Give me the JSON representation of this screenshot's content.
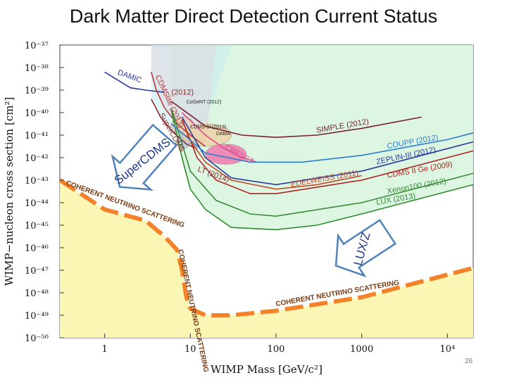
{
  "title": "Dark Matter Direct Detection Current Status",
  "page_number": "26",
  "colors": {
    "luz_arrow": "#4f81bd",
    "neutrino_floor": "#f4822a",
    "neutrino_fill": "#fbf6b3",
    "excluded_region": "#d9f5df",
    "supercdms_region": "#c9ecf2",
    "cdms_region": "#f6c7d0"
  },
  "chart_data": {
    "type": "line",
    "title": "",
    "xlabel": "WIMP Mass [GeV/c²]",
    "ylabel": "WIMP−nucleon cross section [cm²]",
    "xscale": "log",
    "yscale": "log",
    "xlim": [
      0.3,
      20000
    ],
    "ylim": [
      1e-50,
      1e-37
    ],
    "x_ticks": [
      "1",
      "10",
      "100",
      "1000",
      "10⁴"
    ],
    "y_ticks": [
      "10⁻³⁷",
      "10⁻³⁸",
      "10⁻³⁹",
      "10⁻⁴⁰",
      "10⁻⁴¹",
      "10⁻⁴²",
      "10⁻⁴³",
      "10⁻⁴⁴",
      "10⁻⁴⁵",
      "10⁻⁴⁶",
      "10⁻⁴⁷",
      "10⁻⁴⁸",
      "10⁻⁴⁹",
      "10⁻⁵⁰"
    ],
    "grid": false,
    "series": [
      {
        "name": "DAMIC",
        "color": "#2b3aa0",
        "points": [
          [
            1.0,
            -38.2
          ],
          [
            2.0,
            -38.9
          ],
          [
            3.0,
            -39.0
          ],
          [
            5.0,
            -39.1
          ]
        ]
      },
      {
        "name": "CDMSlite (2013)",
        "color": "#b53a3a",
        "points": [
          [
            3.5,
            -38.2
          ],
          [
            4.0,
            -39.0
          ],
          [
            5.0,
            -39.8
          ],
          [
            7.0,
            -40.5
          ],
          [
            10.0,
            -41.0
          ],
          [
            15.0,
            -41.5
          ]
        ]
      },
      {
        "name": "SuperCDMS",
        "color": "#8a2b2b",
        "points": [
          [
            3.5,
            -39.4
          ],
          [
            4.5,
            -40.2
          ],
          [
            6.0,
            -40.8
          ],
          [
            9.0,
            -41.4
          ],
          [
            12.0,
            -41.6
          ]
        ]
      },
      {
        "name": "CRESST",
        "color": "#d94f8a",
        "points": [
          [
            8.0,
            -40.0
          ],
          [
            15.0,
            -41.0
          ],
          [
            25.0,
            -41.6
          ],
          [
            40.0,
            -42.0
          ],
          [
            60.0,
            -42.2
          ]
        ]
      },
      {
        "name": "LUX (2013)",
        "color": "#2e8b2e",
        "points": [
          [
            6.0,
            -39.9
          ],
          [
            8.0,
            -42.0
          ],
          [
            10.0,
            -43.4
          ],
          [
            15.0,
            -44.3
          ],
          [
            30.0,
            -45.1
          ],
          [
            100.0,
            -45.2
          ],
          [
            300.0,
            -45.0
          ],
          [
            1000.0,
            -44.5
          ],
          [
            10000.0,
            -43.5
          ],
          [
            20000.0,
            -43.2
          ]
        ]
      },
      {
        "name": "Xenon100 (2012)",
        "color": "#3b8a3b",
        "points": [
          [
            6.0,
            -39.8
          ],
          [
            10.0,
            -42.6
          ],
          [
            20.0,
            -43.9
          ],
          [
            50.0,
            -44.5
          ],
          [
            100.0,
            -44.6
          ],
          [
            1000.0,
            -44.0
          ],
          [
            10000.0,
            -43.0
          ],
          [
            20000.0,
            -42.7
          ]
        ]
      },
      {
        "name": "CDMS II Ge (2009)",
        "color": "#b22222",
        "points": [
          [
            8.0,
            -40.3
          ],
          [
            12.0,
            -42.0
          ],
          [
            20.0,
            -43.0
          ],
          [
            50.0,
            -43.6
          ],
          [
            100.0,
            -43.6
          ],
          [
            1000.0,
            -43.0
          ],
          [
            10000.0,
            -42.0
          ],
          [
            20000.0,
            -41.7
          ]
        ]
      },
      {
        "name": "EDELWEISS (2011)",
        "color": "#c04a2a",
        "points": [
          [
            9.0,
            -41.0
          ],
          [
            15.0,
            -42.2
          ],
          [
            30.0,
            -43.0
          ],
          [
            100.0,
            -43.4
          ],
          [
            300.0,
            -43.2
          ],
          [
            1000.0,
            -42.8
          ]
        ]
      },
      {
        "name": "ZEPLIN-III (2012)",
        "color": "#2b3aa0",
        "points": [
          [
            8.0,
            -40.2
          ],
          [
            15.0,
            -42.0
          ],
          [
            30.0,
            -42.9
          ],
          [
            100.0,
            -43.2
          ],
          [
            1000.0,
            -42.6
          ],
          [
            10000.0,
            -41.6
          ],
          [
            20000.0,
            -41.3
          ]
        ]
      },
      {
        "name": "COUPP (2012)",
        "color": "#2b7bd0",
        "points": [
          [
            6.0,
            -40.5
          ],
          [
            15.0,
            -41.8
          ],
          [
            50.0,
            -42.2
          ],
          [
            200.0,
            -42.2
          ],
          [
            1000.0,
            -41.9
          ],
          [
            10000.0,
            -41.2
          ],
          [
            20000.0,
            -40.9
          ]
        ]
      },
      {
        "name": "SIMPLE (2012)",
        "color": "#7a1f2f",
        "points": [
          [
            6.0,
            -39.5
          ],
          [
            15.0,
            -40.6
          ],
          [
            40.0,
            -41.0
          ],
          [
            100.0,
            -41.1
          ],
          [
            300.0,
            -41.0
          ],
          [
            1000.0,
            -40.7
          ],
          [
            5000.0,
            -40.2
          ]
        ]
      },
      {
        "name": "LUX/Z",
        "color": "#4f81bd",
        "points": [
          [
            500.0,
            -46.8
          ],
          [
            2000.0,
            -45.3
          ]
        ]
      },
      {
        "name": "SuperCDMS",
        "color": "#4f81bd",
        "points": [
          [
            1.5,
            -43.3
          ],
          [
            5.0,
            -41.0
          ]
        ]
      },
      {
        "name": "COHERENT NEUTRINO SCATTERING",
        "color": "#f4822a",
        "points": [
          [
            0.3,
            -43.0
          ],
          [
            1.0,
            -44.3
          ],
          [
            3.0,
            -44.8
          ],
          [
            5.0,
            -45.5
          ],
          [
            7.0,
            -46.1
          ],
          [
            8.0,
            -47.0
          ],
          [
            9.0,
            -48.2
          ],
          [
            10.0,
            -48.7
          ],
          [
            15.0,
            -49.0
          ],
          [
            30.0,
            -49.0
          ],
          [
            100.0,
            -48.8
          ],
          [
            1000.0,
            -48.2
          ],
          [
            10000.0,
            -47.2
          ],
          [
            20000.0,
            -46.9
          ]
        ]
      }
    ],
    "regions": [
      {
        "name": "CoGeNT (2012)",
        "x": [
          6.0,
          11.0
        ],
        "y": [
          -40.9,
          -40.2
        ]
      },
      {
        "name": "CDMS Si (2013)",
        "x": [
          7.0,
          10.0
        ],
        "y": [
          -41.6,
          -40.9
        ]
      },
      {
        "name": "DAMA",
        "x": [
          8.0,
          30.0
        ],
        "y": [
          -41.5,
          -40.5
        ]
      },
      {
        "name": "CRESST",
        "x": [
          15.0,
          45.0
        ],
        "y": [
          -42.3,
          -41.4
        ]
      }
    ],
    "curve_labels": [
      {
        "text": "DAMIC",
        "series": 0
      },
      {
        "text": "CDMSlite (2013)",
        "series": 1
      },
      {
        "text": "(2012)",
        "series": 2
      },
      {
        "text": "SuperCDMS",
        "series": 2
      },
      {
        "text": "CoGeNT (2012)",
        "series": 3
      },
      {
        "text": "CDMS Si (2013)",
        "series": 3
      },
      {
        "text": "DAMA",
        "series": 3
      },
      {
        "text": "SIMPLE (2012)",
        "series": 10
      },
      {
        "text": "COUPP (2012)",
        "series": 9
      },
      {
        "text": "ZEPLIN-III (2012)",
        "series": 8
      },
      {
        "text": "CDMS II Ge (2009)",
        "series": 6
      },
      {
        "text": "EDELWEISS (2011)",
        "series": 7
      },
      {
        "text": "Xenon100 (2012)",
        "series": 5
      },
      {
        "text": "LUX (2013)",
        "series": 4
      },
      {
        "text": "CRESST",
        "series": 3
      },
      {
        "text": "LT (2014)",
        "series": 2
      }
    ],
    "annotations": [
      "COHERENT NEUTRINO SCATTERING",
      "COHERENT NEUTRINO SCATTERING",
      "COHERENT NEUTRINO SCATTERING",
      "SuperCDMS",
      "LUX/Z"
    ]
  }
}
